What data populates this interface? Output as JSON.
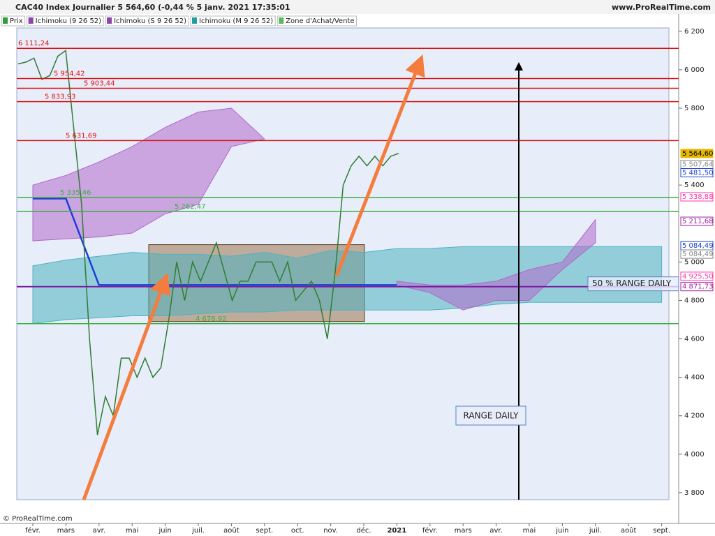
{
  "chart_data": {
    "type": "line",
    "title": "CAC40 Index Journalier 5 564,60 (-0,44 % 5 janv. 2021 17:35:01",
    "source": "www.ProRealTime.com",
    "copyright": "© ProRealTime.com",
    "legend": [
      {
        "name": "Prix",
        "color": "#2e9d3a"
      },
      {
        "name": "Ichimoku (9 26 52)",
        "color": "#8e44ad"
      },
      {
        "name": "Ichimoku (S 9 26 52)",
        "color": "#8e44ad"
      },
      {
        "name": "Ichimoku (M 9 26 52)",
        "color": "#1f9e9e"
      },
      {
        "name": "Zone d'Achat/Vente",
        "color": "#5cb85c"
      }
    ],
    "categories": [
      "févr.",
      "mars",
      "avr.",
      "mai",
      "juin",
      "juil.",
      "août",
      "sept.",
      "oct.",
      "nov.",
      "déc.",
      "2021",
      "févr.",
      "mars",
      "avr.",
      "mai",
      "juin",
      "juil.",
      "août",
      "sept."
    ],
    "ylim": [
      3640,
      6290
    ],
    "yticks": [
      {
        "value": 6200,
        "label": "6 200"
      },
      {
        "value": 6000,
        "label": "6 000"
      },
      {
        "value": 5800,
        "label": "5 800"
      },
      {
        "value": 5400,
        "label": "5 400"
      },
      {
        "value": 5000,
        "label": "5 000"
      },
      {
        "value": 4800,
        "label": "4 800"
      },
      {
        "value": 4600,
        "label": "4 600"
      },
      {
        "value": 4400,
        "label": "4 400"
      },
      {
        "value": 4200,
        "label": "4 200"
      },
      {
        "value": 4000,
        "label": "4 000"
      },
      {
        "value": 3800,
        "label": "3 800"
      }
    ],
    "price": {
      "name": "Prix",
      "color": "#2e7d32",
      "values": [
        6030,
        6040,
        6060,
        5950,
        5970,
        6070,
        6100,
        5700,
        5300,
        4600,
        4100,
        4300,
        4200,
        4500,
        4500,
        4400,
        4500,
        4400,
        4450,
        4700,
        5000,
        4800,
        5000,
        4900,
        5000,
        5100,
        4950,
        4800,
        4900,
        4900,
        5000,
        5000,
        5000,
        4900,
        5000,
        4800,
        4850,
        4900,
        4800,
        4600,
        4950,
        5400,
        5500,
        5550,
        5500,
        5550,
        5500,
        5550,
        5564.6
      ]
    },
    "series": [
      {
        "name": "Ichimoku (M 9 26 52)",
        "kind": "cloud",
        "color": "#4fb3bf",
        "upper": [
          4980,
          5010,
          5030,
          5050,
          5040,
          5040,
          5030,
          5050,
          5020,
          5060,
          5050,
          5070,
          5070,
          5080,
          5080,
          5080,
          5080,
          5080,
          5080,
          5080
        ],
        "lower": [
          4680,
          4700,
          4710,
          4720,
          4720,
          4730,
          4740,
          4740,
          4750,
          4750,
          4750,
          4750,
          4750,
          4760,
          4780,
          4790,
          4790,
          4790,
          4790,
          4790
        ]
      },
      {
        "name": "Ichimoku (9 26 52)",
        "kind": "cloud",
        "color": "#b06ac8",
        "upper": [
          5400,
          5450,
          5520,
          5600,
          5700,
          5780,
          5800,
          5640,
          null,
          null,
          null,
          4900,
          4880,
          4880,
          4900,
          4960,
          5000,
          5220,
          null,
          null
        ],
        "lower": [
          5110,
          5120,
          5130,
          5150,
          5250,
          5300,
          5600,
          5640,
          null,
          null,
          null,
          4880,
          4840,
          4750,
          4800,
          4800,
          4960,
          5100,
          null,
          null
        ]
      },
      {
        "name": "Ichimoku (S 9 26 52)",
        "kind": "line",
        "color": "#1a3fd6",
        "values": [
          5330,
          5330,
          4880,
          4880,
          4880,
          4880,
          4880,
          4880,
          4880,
          4880,
          4880,
          4880,
          null,
          null,
          null,
          null,
          null,
          null,
          null,
          null
        ]
      }
    ],
    "levels": [
      {
        "value": 6111.24,
        "label": "6 111,24",
        "color": "#e01010"
      },
      {
        "value": 5954.42,
        "label": "5 954,42",
        "color": "#e01010"
      },
      {
        "value": 5903.44,
        "label": "5 903,44",
        "color": "#e01010"
      },
      {
        "value": 5833.93,
        "label": "5 833,93",
        "color": "#e01010"
      },
      {
        "value": 5631.69,
        "label": "5 631,69",
        "color": "#e01010"
      },
      {
        "value": 5335.46,
        "label": "5 335,46",
        "color": "#3cb043"
      },
      {
        "value": 5262.47,
        "label": "5 262,47",
        "color": "#3cb043"
      },
      {
        "value": 4678.92,
        "label": "4 678,92",
        "color": "#3cb043"
      },
      {
        "value": 4871.73,
        "label": "50 % RANGE DAILY",
        "color": "#7a1fa2"
      }
    ],
    "zone": {
      "top": 5090,
      "bottom": 4690,
      "color": "#8b5a2b"
    },
    "value_tags": [
      {
        "value": 5564.6,
        "label": "5 564,60",
        "color": "#e6b800"
      },
      {
        "value": 5507.64,
        "label": "5 507,64",
        "color": "#888888"
      },
      {
        "value": 5481.5,
        "label": "5 481,50",
        "color": "#1a3fd6"
      },
      {
        "value": 5338.88,
        "label": "5 338,88",
        "color": "#ff33aa"
      },
      {
        "value": 5211.68,
        "label": "5 211,68",
        "color": "#a020a0"
      },
      {
        "value": 5084.49,
        "label": "5 084,49",
        "color": "#1a3fd6"
      },
      {
        "value": 5084.49,
        "label": "5 084,49",
        "color": "#888888"
      },
      {
        "value": 4925.5,
        "label": "4 925,50",
        "color": "#ff33aa"
      },
      {
        "value": 4871.73,
        "label": "4 871,73",
        "color": "#a020a0"
      }
    ],
    "annotations": [
      "RANGE DAILY"
    ]
  }
}
